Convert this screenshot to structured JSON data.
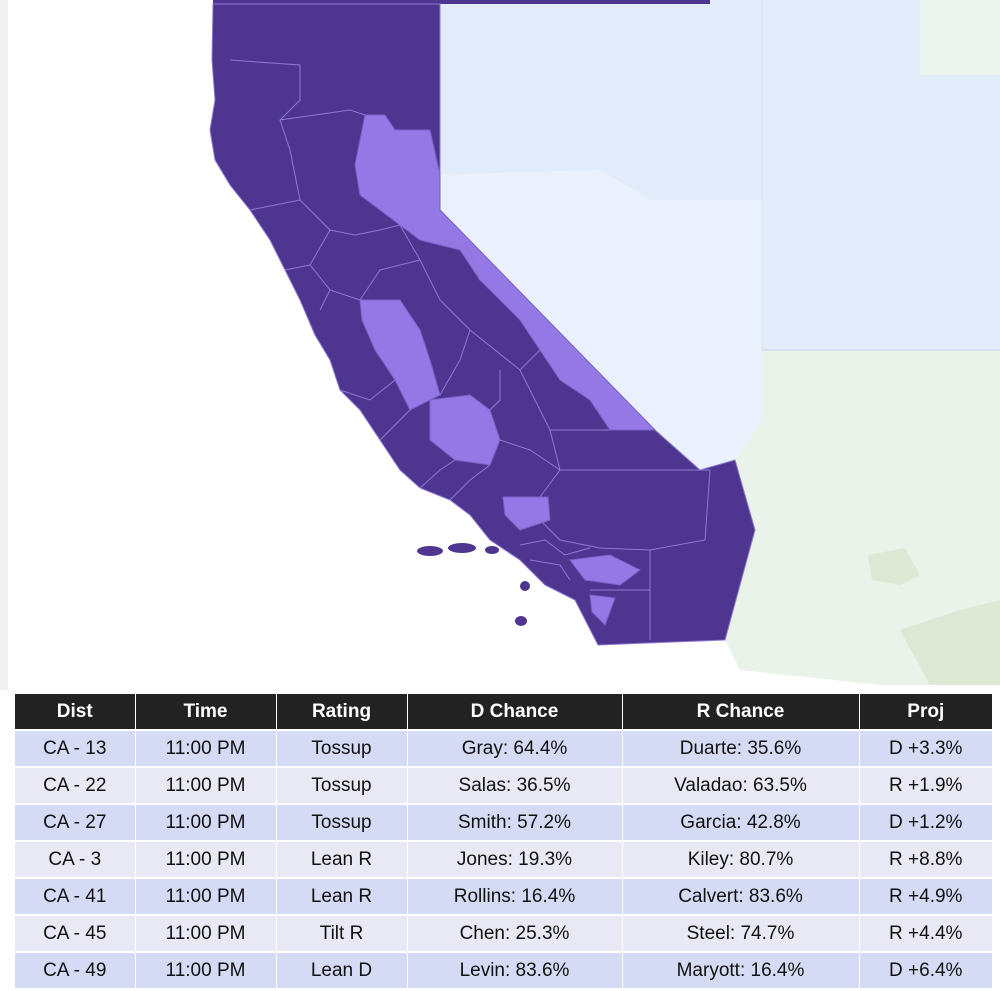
{
  "colors": {
    "safe_d": "#4e3590",
    "competitive": "#9478e6",
    "nevada": "#e6eefc",
    "arizona": "#e9f3ea",
    "oregon_idaho": "#e2ebf9"
  },
  "map": {
    "regions": [
      {
        "name": "california-safe-districts",
        "rating": "safe"
      },
      {
        "name": "california-competitive-districts",
        "rating": "competitive"
      },
      {
        "name": "nevada",
        "rating": "none"
      },
      {
        "name": "arizona",
        "rating": "none"
      }
    ]
  },
  "table": {
    "headers": [
      "Dist",
      "Time",
      "Rating",
      "D Chance",
      "R Chance",
      "Proj"
    ],
    "rows": [
      [
        "CA - 13",
        "11:00 PM",
        "Tossup",
        "Gray: 64.4%",
        "Duarte: 35.6%",
        "D +3.3%"
      ],
      [
        "CA - 22",
        "11:00 PM",
        "Tossup",
        "Salas: 36.5%",
        "Valadao: 63.5%",
        "R +1.9%"
      ],
      [
        "CA - 27",
        "11:00 PM",
        "Tossup",
        "Smith: 57.2%",
        "Garcia: 42.8%",
        "D +1.2%"
      ],
      [
        "CA - 3",
        "11:00 PM",
        "Lean R",
        "Jones: 19.3%",
        "Kiley: 80.7%",
        "R +8.8%"
      ],
      [
        "CA - 41",
        "11:00 PM",
        "Lean R",
        "Rollins: 16.4%",
        "Calvert: 83.6%",
        "R +4.9%"
      ],
      [
        "CA - 45",
        "11:00 PM",
        "Tilt R",
        "Chen: 25.3%",
        "Steel: 74.7%",
        "R +4.4%"
      ],
      [
        "CA - 49",
        "11:00 PM",
        "Lean D",
        "Levin: 83.6%",
        "Maryott: 16.4%",
        "D +6.4%"
      ]
    ]
  }
}
